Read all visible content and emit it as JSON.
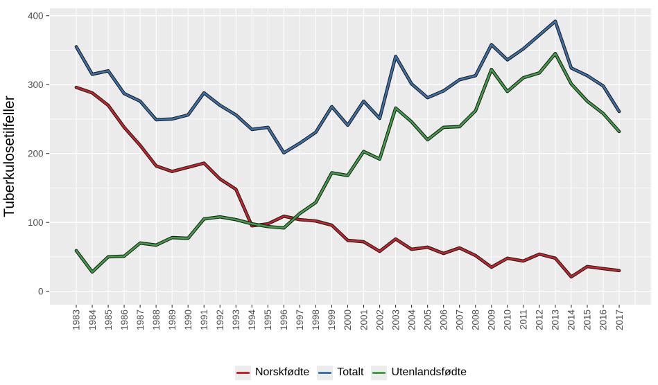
{
  "figure": {
    "background": "#ffffff",
    "panel_background": "#ebebeb",
    "grid_color": "#ffffff",
    "tick_color": "#333333",
    "tick_label_color": "#4d4d4d",
    "line_outline_color": "#1f1f1f"
  },
  "y_axis": {
    "title": "Tuberkulosetilfeller",
    "ticks": [
      0,
      100,
      200,
      300,
      400
    ],
    "minor_ticks": [
      50,
      150,
      250,
      350
    ]
  },
  "x_axis": {
    "tick_labels": [
      "1983",
      "1984",
      "1985",
      "1986",
      "1987",
      "1988",
      "1989",
      "1990",
      "1991",
      "1992",
      "1993",
      "1994",
      "1995",
      "1996",
      "1997",
      "1998",
      "1999",
      "2000",
      "2001",
      "2002",
      "2003",
      "2004",
      "2005",
      "2006",
      "2007",
      "2008",
      "2009",
      "2010",
      "2011",
      "2012",
      "2013",
      "2014",
      "2015",
      "2016",
      "2017"
    ]
  },
  "legend": {
    "position": "bottom",
    "items": [
      {
        "label": "Norskfødte",
        "color": "#cb2329"
      },
      {
        "label": "Totalt",
        "color": "#3a72ae"
      },
      {
        "label": "Utenlandsfødte",
        "color": "#3ea144"
      }
    ]
  },
  "chart_data": {
    "type": "line",
    "title": "",
    "xlabel": "",
    "ylabel": "Tuberkulosetilfeller",
    "x": [
      1983,
      1984,
      1985,
      1986,
      1987,
      1988,
      1989,
      1990,
      1991,
      1992,
      1993,
      1994,
      1995,
      1996,
      1997,
      1998,
      1999,
      2000,
      2001,
      2002,
      2003,
      2004,
      2005,
      2006,
      2007,
      2008,
      2009,
      2010,
      2011,
      2012,
      2013,
      2014,
      2015,
      2016,
      2017
    ],
    "ylim": [
      -20,
      412
    ],
    "y_breaks": [
      0,
      100,
      200,
      300,
      400
    ],
    "grid": "on",
    "legend_position": "bottom",
    "series": [
      {
        "name": "Norskfødte",
        "color": "#cb2329",
        "values": [
          296,
          288,
          270,
          238,
          212,
          182,
          174,
          180,
          186,
          163,
          148,
          95,
          98,
          109,
          104,
          102,
          96,
          74,
          72,
          58,
          76,
          61,
          64,
          55,
          63,
          52,
          35,
          48,
          44,
          54,
          48,
          21,
          36,
          33,
          30
        ]
      },
      {
        "name": "Totalt",
        "color": "#3a72ae",
        "values": [
          355,
          315,
          320,
          287,
          276,
          249,
          250,
          256,
          288,
          270,
          256,
          235,
          238,
          201,
          215,
          231,
          268,
          241,
          276,
          251,
          341,
          301,
          281,
          291,
          307,
          313,
          358,
          336,
          352,
          372,
          392,
          324,
          313,
          298,
          261
        ]
      },
      {
        "name": "Utenlandsfødte",
        "color": "#3ea144",
        "values": [
          59,
          28,
          50,
          51,
          70,
          67,
          78,
          77,
          105,
          108,
          104,
          98,
          94,
          92,
          113,
          129,
          172,
          168,
          203,
          192,
          266,
          246,
          220,
          238,
          239,
          262,
          322,
          290,
          310,
          317,
          345,
          301,
          276,
          258,
          232
        ]
      }
    ]
  }
}
